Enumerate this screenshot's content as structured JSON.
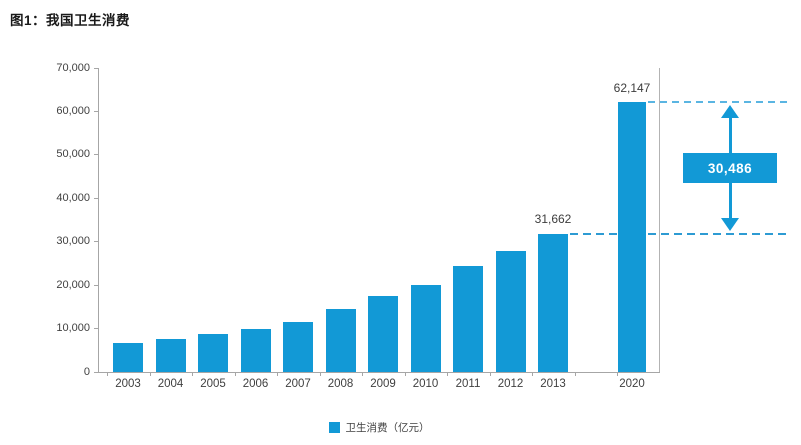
{
  "title": "图1：我国卫生消费",
  "chart_data": {
    "type": "bar",
    "title": "图1：我国卫生消费",
    "categories": [
      "2003",
      "2004",
      "2005",
      "2006",
      "2007",
      "2008",
      "2009",
      "2010",
      "2011",
      "2012",
      "2013",
      "2020"
    ],
    "values": [
      6584,
      7590,
      8660,
      9843,
      11574,
      14535,
      17542,
      19980,
      24346,
      27847,
      31662,
      62147
    ],
    "xlabel": "",
    "ylabel": "",
    "ylim": [
      0,
      70000
    ],
    "y_tick_step": 10000,
    "y_tick_labels": [
      "70,000",
      "60,000",
      "50,000",
      "40,000",
      "30,000",
      "20,000",
      "10,000",
      "0"
    ],
    "grid": false,
    "timeline_gap_between": [
      "2013",
      "2020"
    ],
    "labeled_points": {
      "p2013": "31,662",
      "p2020": "62,147"
    },
    "difference_annotation": {
      "label": "30,486",
      "from": "31,662",
      "to": "62,147",
      "style": "double-headed-arrow-with-dashed-reference-lines"
    },
    "legend": {
      "label": "卫生消费（亿元）",
      "position": "bottom"
    },
    "colors": {
      "bar": "#1299d6",
      "dashed_reference_top": "#5ab5e2",
      "dashed_reference_bottom": "#2d9bd3",
      "annotation_badge": "#1299d6",
      "annotation_text": "#ffffff",
      "axis": "#a6a6a6",
      "label_text": "#404040"
    }
  }
}
